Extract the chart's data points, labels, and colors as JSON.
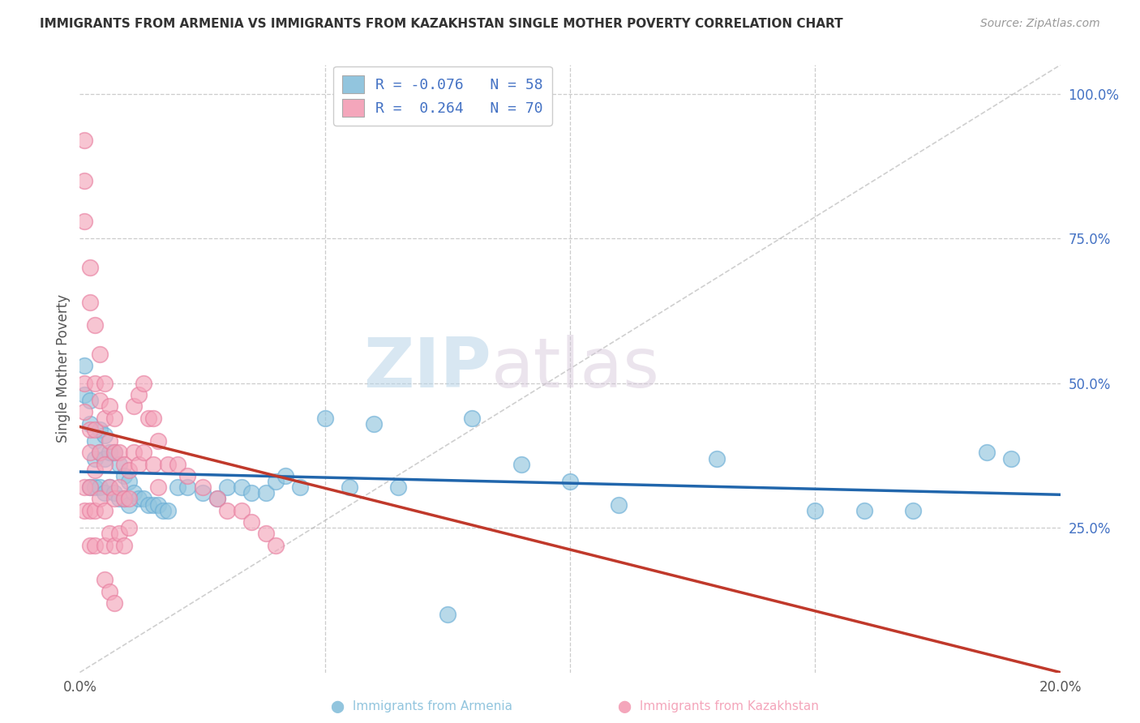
{
  "title": "IMMIGRANTS FROM ARMENIA VS IMMIGRANTS FROM KAZAKHSTAN SINGLE MOTHER POVERTY CORRELATION CHART",
  "source": "Source: ZipAtlas.com",
  "ylabel": "Single Mother Poverty",
  "xlim": [
    0.0,
    0.2
  ],
  "ylim": [
    0.0,
    1.05
  ],
  "legend_r1": "R = -0.076",
  "legend_n1": "N = 58",
  "legend_r2": "R =  0.264",
  "legend_n2": "N = 70",
  "blue_color": "#92c5de",
  "pink_color": "#f4a6bb",
  "blue_edge_color": "#6baed6",
  "pink_edge_color": "#e87fa0",
  "blue_line_color": "#2166ac",
  "pink_line_color": "#c0392b",
  "diag_line_color": "#bbbbbb",
  "grid_color": "#cccccc",
  "bg_color": "#ffffff",
  "title_color": "#333333",
  "axis_label_color": "#555555",
  "right_axis_color": "#4472c4",
  "blue_scatter_x": [
    0.001,
    0.001,
    0.002,
    0.002,
    0.002,
    0.003,
    0.003,
    0.003,
    0.004,
    0.004,
    0.004,
    0.005,
    0.005,
    0.005,
    0.006,
    0.006,
    0.007,
    0.007,
    0.008,
    0.008,
    0.009,
    0.009,
    0.01,
    0.01,
    0.011,
    0.012,
    0.013,
    0.014,
    0.015,
    0.016,
    0.017,
    0.018,
    0.02,
    0.022,
    0.025,
    0.028,
    0.03,
    0.033,
    0.035,
    0.038,
    0.04,
    0.042,
    0.045,
    0.05,
    0.055,
    0.06,
    0.065,
    0.075,
    0.08,
    0.09,
    0.1,
    0.11,
    0.13,
    0.15,
    0.16,
    0.17,
    0.185,
    0.19
  ],
  "blue_scatter_y": [
    0.48,
    0.53,
    0.47,
    0.43,
    0.32,
    0.4,
    0.37,
    0.32,
    0.42,
    0.38,
    0.32,
    0.41,
    0.37,
    0.31,
    0.38,
    0.32,
    0.38,
    0.31,
    0.36,
    0.3,
    0.34,
    0.3,
    0.33,
    0.29,
    0.31,
    0.3,
    0.3,
    0.29,
    0.29,
    0.29,
    0.28,
    0.28,
    0.32,
    0.32,
    0.31,
    0.3,
    0.32,
    0.32,
    0.31,
    0.31,
    0.33,
    0.34,
    0.32,
    0.44,
    0.32,
    0.43,
    0.32,
    0.1,
    0.44,
    0.36,
    0.33,
    0.29,
    0.37,
    0.28,
    0.28,
    0.28,
    0.38,
    0.37
  ],
  "pink_scatter_x": [
    0.001,
    0.001,
    0.001,
    0.001,
    0.001,
    0.001,
    0.001,
    0.002,
    0.002,
    0.002,
    0.002,
    0.002,
    0.002,
    0.002,
    0.003,
    0.003,
    0.003,
    0.003,
    0.003,
    0.003,
    0.004,
    0.004,
    0.004,
    0.004,
    0.005,
    0.005,
    0.005,
    0.005,
    0.005,
    0.006,
    0.006,
    0.006,
    0.006,
    0.007,
    0.007,
    0.007,
    0.007,
    0.008,
    0.008,
    0.008,
    0.009,
    0.009,
    0.009,
    0.01,
    0.01,
    0.01,
    0.011,
    0.011,
    0.012,
    0.012,
    0.013,
    0.013,
    0.014,
    0.015,
    0.015,
    0.016,
    0.016,
    0.018,
    0.02,
    0.022,
    0.025,
    0.028,
    0.03,
    0.033,
    0.035,
    0.038,
    0.04,
    0.005,
    0.006,
    0.007
  ],
  "pink_scatter_y": [
    0.92,
    0.85,
    0.78,
    0.5,
    0.45,
    0.32,
    0.28,
    0.7,
    0.64,
    0.42,
    0.38,
    0.32,
    0.28,
    0.22,
    0.6,
    0.5,
    0.42,
    0.35,
    0.28,
    0.22,
    0.55,
    0.47,
    0.38,
    0.3,
    0.5,
    0.44,
    0.36,
    0.28,
    0.22,
    0.46,
    0.4,
    0.32,
    0.24,
    0.44,
    0.38,
    0.3,
    0.22,
    0.38,
    0.32,
    0.24,
    0.36,
    0.3,
    0.22,
    0.35,
    0.3,
    0.25,
    0.46,
    0.38,
    0.48,
    0.36,
    0.5,
    0.38,
    0.44,
    0.44,
    0.36,
    0.4,
    0.32,
    0.36,
    0.36,
    0.34,
    0.32,
    0.3,
    0.28,
    0.28,
    0.26,
    0.24,
    0.22,
    0.16,
    0.14,
    0.12
  ]
}
